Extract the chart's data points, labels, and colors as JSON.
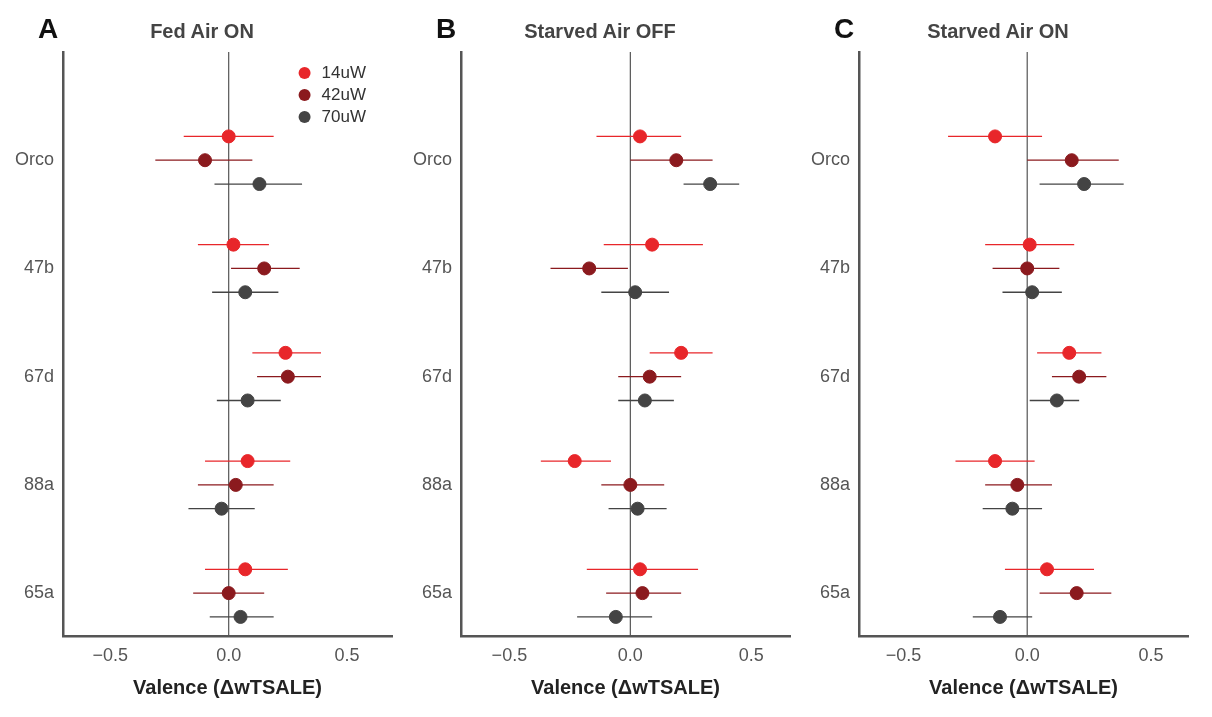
{
  "chart_data": [
    {
      "type": "scatter",
      "orientation": "horizontal",
      "title": "Fed Air ON",
      "xlabel": "Valence (ΔwTSALE)",
      "annotations": [
        "A"
      ],
      "categories": [
        "Orco",
        "47b",
        "67d",
        "88a",
        "65a"
      ],
      "xlim": [
        -0.7,
        0.69
      ],
      "xticks": [
        {
          "value": -0.5,
          "label": "−0.5"
        },
        {
          "value": 0,
          "label": "0.0"
        },
        {
          "value": 0.5,
          "label": "0.5"
        }
      ],
      "legend": "top right",
      "marker": "circle",
      "ref_lines": [
        {
          "axis": "x",
          "value": 0,
          "color": "#555555"
        }
      ],
      "series": [
        {
          "name": "14uW",
          "color": "#e8262a",
          "values": [
            0.0,
            0.02,
            0.24,
            0.08,
            0.07
          ],
          "errors": [
            [
              -0.19,
              0.19
            ],
            [
              -0.13,
              0.17
            ],
            [
              0.1,
              0.39
            ],
            [
              -0.1,
              0.26
            ],
            [
              -0.1,
              0.25
            ]
          ]
        },
        {
          "name": "42uW",
          "color": "#8b1a1e",
          "values": [
            -0.1,
            0.15,
            0.25,
            0.03,
            0.0
          ],
          "errors": [
            [
              -0.31,
              0.1
            ],
            [
              0.01,
              0.3
            ],
            [
              0.12,
              0.39
            ],
            [
              -0.13,
              0.19
            ],
            [
              -0.15,
              0.15
            ]
          ]
        },
        {
          "name": "70uW",
          "color": "#444444",
          "values": [
            0.13,
            0.07,
            0.08,
            -0.03,
            0.05
          ],
          "errors": [
            [
              -0.06,
              0.31
            ],
            [
              -0.07,
              0.21
            ],
            [
              -0.05,
              0.22
            ],
            [
              -0.17,
              0.11
            ],
            [
              -0.08,
              0.19
            ]
          ]
        }
      ]
    },
    {
      "type": "scatter",
      "orientation": "horizontal",
      "title": "Starved Air OFF",
      "xlabel": "Valence (ΔwTSALE)",
      "annotations": [
        "B"
      ],
      "categories": [
        "Orco",
        "47b",
        "67d",
        "88a",
        "65a"
      ],
      "xlim": [
        -0.7,
        0.66
      ],
      "xticks": [
        {
          "value": -0.5,
          "label": "−0.5"
        },
        {
          "value": 0,
          "label": "0.0"
        },
        {
          "value": 0.5,
          "label": "0.5"
        }
      ],
      "marker": "circle",
      "ref_lines": [
        {
          "axis": "x",
          "value": 0,
          "color": "#555555"
        }
      ],
      "series": [
        {
          "color": "#e8262a",
          "values": [
            0.04,
            0.09,
            0.21,
            -0.23,
            0.04
          ],
          "errors": [
            [
              -0.14,
              0.21
            ],
            [
              -0.11,
              0.3
            ],
            [
              0.08,
              0.34
            ],
            [
              -0.37,
              -0.08
            ],
            [
              -0.18,
              0.28
            ]
          ]
        },
        {
          "color": "#8b1a1e",
          "values": [
            0.19,
            -0.17,
            0.08,
            0.0,
            0.05
          ],
          "errors": [
            [
              0.0,
              0.34
            ],
            [
              -0.33,
              -0.01
            ],
            [
              -0.05,
              0.21
            ],
            [
              -0.12,
              0.14
            ],
            [
              -0.1,
              0.21
            ]
          ]
        },
        {
          "color": "#444444",
          "values": [
            0.33,
            0.02,
            0.06,
            0.03,
            -0.06
          ],
          "errors": [
            [
              0.22,
              0.45
            ],
            [
              -0.12,
              0.16
            ],
            [
              -0.05,
              0.18
            ],
            [
              -0.09,
              0.15
            ],
            [
              -0.22,
              0.09
            ]
          ]
        }
      ]
    },
    {
      "type": "scatter",
      "orientation": "horizontal",
      "title": "Starved Air ON",
      "xlabel": "Valence (ΔwTSALE)",
      "annotations": [
        "C"
      ],
      "categories": [
        "Orco",
        "47b",
        "67d",
        "88a",
        "65a"
      ],
      "xlim": [
        -0.68,
        0.65
      ],
      "xticks": [
        {
          "value": -0.5,
          "label": "−0.5"
        },
        {
          "value": 0,
          "label": "0.0"
        },
        {
          "value": 0.5,
          "label": "0.5"
        }
      ],
      "marker": "circle",
      "ref_lines": [
        {
          "axis": "x",
          "value": 0,
          "color": "#555555"
        }
      ],
      "series": [
        {
          "color": "#e8262a",
          "values": [
            -0.13,
            0.01,
            0.17,
            -0.13,
            0.08
          ],
          "errors": [
            [
              -0.32,
              0.06
            ],
            [
              -0.17,
              0.19
            ],
            [
              0.04,
              0.3
            ],
            [
              -0.29,
              0.03
            ],
            [
              -0.09,
              0.27
            ]
          ]
        },
        {
          "color": "#8b1a1e",
          "values": [
            0.18,
            0.0,
            0.21,
            -0.04,
            0.2
          ],
          "errors": [
            [
              0.0,
              0.37
            ],
            [
              -0.14,
              0.13
            ],
            [
              0.1,
              0.32
            ],
            [
              -0.17,
              0.1
            ],
            [
              0.05,
              0.34
            ]
          ]
        },
        {
          "color": "#444444",
          "values": [
            0.23,
            0.02,
            0.12,
            -0.06,
            -0.11
          ],
          "errors": [
            [
              0.05,
              0.39
            ],
            [
              -0.1,
              0.14
            ],
            [
              0.01,
              0.21
            ],
            [
              -0.18,
              0.06
            ],
            [
              -0.22,
              0.02
            ]
          ]
        }
      ]
    }
  ]
}
